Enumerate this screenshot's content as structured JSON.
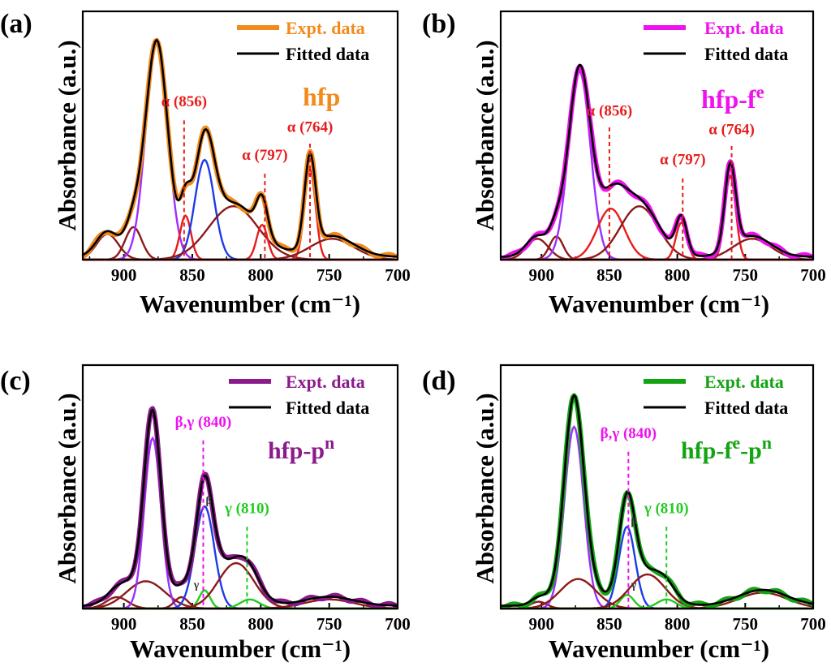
{
  "chart_data": [
    {
      "type": "line",
      "panel_label": "(a)",
      "sample_label": "hfp",
      "sample_sup": "",
      "sample_color": "#f28a1c",
      "xlabel": "Wavenumber (cm⁻¹)",
      "ylabel": "Absorbance (a.u.)",
      "xlim": [
        930,
        700
      ],
      "xticks": [
        "900",
        "850",
        "800",
        "750",
        "700"
      ],
      "legend": [
        {
          "label": "Expt. data",
          "color": "#f28a1c"
        },
        {
          "label": "Fitted data",
          "color": "#000000"
        }
      ],
      "expt_color": "#f28a1c",
      "peaks": [
        {
          "center": 912,
          "height": 0.11,
          "width": 8,
          "color": "#8b1a1a"
        },
        {
          "center": 893,
          "height": 0.14,
          "width": 6,
          "color": "#8b1a1a"
        },
        {
          "center": 876,
          "height": 0.93,
          "width": 8,
          "color": "#9b30ff"
        },
        {
          "center": 855,
          "height": 0.19,
          "width": 4,
          "color": "#e81c1c"
        },
        {
          "center": 841,
          "height": 0.43,
          "width": 7,
          "color": "#1c3ce8"
        },
        {
          "center": 820,
          "height": 0.23,
          "width": 18,
          "color": "#8b1a1a"
        },
        {
          "center": 799,
          "height": 0.15,
          "width": 4,
          "color": "#e81c1c"
        },
        {
          "center": 764,
          "height": 0.39,
          "width": 4,
          "color": "#e81c1c"
        },
        {
          "center": 748,
          "height": 0.09,
          "width": 16,
          "color": "#8b1a1a"
        }
      ],
      "annotations": [
        {
          "text": "α (856)",
          "x": 856,
          "color": "#e81c1c",
          "label_y": 0.66,
          "line_top": 0.6,
          "line_bottom": 0
        },
        {
          "text": "α (797)",
          "x": 797,
          "color": "#e81c1c",
          "label_y": 0.43,
          "line_top": 0.37,
          "line_bottom": 0
        },
        {
          "text": "α (764)",
          "x": 764,
          "color": "#e81c1c",
          "label_y": 0.55,
          "line_top": 0.5,
          "line_bottom": 0
        }
      ],
      "minor_labels": []
    },
    {
      "type": "line",
      "panel_label": "(b)",
      "sample_label": "hfp-f",
      "sample_sup": "e",
      "sample_color": "#ee12ee",
      "xlabel": "Wavenumber (cm⁻¹)",
      "ylabel": "Absorbance (a.u.)",
      "xlim": [
        930,
        700
      ],
      "xticks": [
        "900",
        "850",
        "800",
        "750",
        "700"
      ],
      "legend": [
        {
          "label": "Expt. data",
          "color": "#ee12ee"
        },
        {
          "label": "Fitted data",
          "color": "#000000"
        }
      ],
      "expt_color": "#ee12ee",
      "peaks": [
        {
          "center": 903,
          "height": 0.09,
          "width": 8,
          "color": "#8b1a1a"
        },
        {
          "center": 889,
          "height": 0.1,
          "width": 5,
          "color": "#8b1a1a"
        },
        {
          "center": 872,
          "height": 0.81,
          "width": 8,
          "color": "#9b30ff"
        },
        {
          "center": 849,
          "height": 0.22,
          "width": 10,
          "color": "#e81c1c"
        },
        {
          "center": 828,
          "height": 0.23,
          "width": 14,
          "color": "#8b1a1a"
        },
        {
          "center": 797,
          "height": 0.16,
          "width": 4,
          "color": "#e81c1c"
        },
        {
          "center": 761,
          "height": 0.36,
          "width": 4,
          "color": "#e81c1c"
        },
        {
          "center": 745,
          "height": 0.09,
          "width": 14,
          "color": "#8b1a1a"
        }
      ],
      "annotations": [
        {
          "text": "α (856)",
          "x": 850,
          "color": "#e81c1c",
          "label_y": 0.62,
          "line_top": 0.57,
          "line_bottom": 0
        },
        {
          "text": "α (797)",
          "x": 796,
          "color": "#e81c1c",
          "label_y": 0.41,
          "line_top": 0.35,
          "line_bottom": 0
        },
        {
          "text": "α (764)",
          "x": 760,
          "color": "#e81c1c",
          "label_y": 0.54,
          "line_top": 0.49,
          "line_bottom": 0
        }
      ],
      "minor_labels": []
    },
    {
      "type": "line",
      "panel_label": "(c)",
      "sample_label": "hfp-p",
      "sample_sup": "n",
      "sample_color": "#8b1a8b",
      "xlabel": "Wavenumber (cm⁻¹)",
      "ylabel": "Absorbance (a.u.)",
      "xlim": [
        930,
        700
      ],
      "xticks": [
        "900",
        "850",
        "800",
        "750",
        "700"
      ],
      "legend": [
        {
          "label": "Expt. data",
          "color": "#8b1a8b"
        },
        {
          "label": "Fitted data",
          "color": "#000000"
        }
      ],
      "expt_color": "#8b1a8b",
      "peaks": [
        {
          "center": 905,
          "height": 0.05,
          "width": 8,
          "color": "#8b1a1a"
        },
        {
          "center": 884,
          "height": 0.12,
          "width": 14,
          "color": "#8b1a1a"
        },
        {
          "center": 879,
          "height": 0.75,
          "width": 6,
          "color": "#9b30ff"
        },
        {
          "center": 858,
          "height": 0.05,
          "width": 5,
          "color": "#8b1a1a"
        },
        {
          "center": 841,
          "height": 0.45,
          "width": 7,
          "color": "#1c3ce8"
        },
        {
          "center": 841,
          "height": 0.08,
          "width": 4,
          "color": "#22cc22"
        },
        {
          "center": 818,
          "height": 0.2,
          "width": 13,
          "color": "#8b1a1a"
        },
        {
          "center": 808,
          "height": 0.04,
          "width": 7,
          "color": "#22cc22"
        },
        {
          "center": 750,
          "height": 0.04,
          "width": 18,
          "color": "#8b1a1a"
        }
      ],
      "annotations": [
        {
          "text": "β,γ (840)",
          "x": 842,
          "color": "#ee12ee",
          "label_y": 0.8,
          "line_top": 0.74,
          "line_bottom": 0
        },
        {
          "text": "γ (810)",
          "x": 810,
          "color": "#22cc22",
          "label_y": 0.42,
          "line_top": 0.36,
          "line_bottom": 0
        }
      ],
      "minor_labels": [
        {
          "text": "β",
          "x": 838,
          "y": 0.46
        },
        {
          "text": "γ",
          "x": 847,
          "y": 0.09
        }
      ]
    },
    {
      "type": "line",
      "panel_label": "(d)",
      "sample_label": "hfp-f",
      "sample_sup": "e",
      "sample_label2": "-p",
      "sample_sup2": "n",
      "sample_color": "#13a313",
      "xlabel": "Wavenumber (cm⁻¹)",
      "ylabel": "Absorbance (a.u.)",
      "xlim": [
        930,
        700
      ],
      "xticks": [
        "900",
        "850",
        "800",
        "750",
        "700"
      ],
      "legend": [
        {
          "label": "Expt. data",
          "color": "#13a313"
        },
        {
          "label": "Fitted data",
          "color": "#000000"
        }
      ],
      "expt_color": "#13a313",
      "peaks": [
        {
          "center": 902,
          "height": 0.03,
          "width": 6,
          "color": "#8b1a1a"
        },
        {
          "center": 876,
          "height": 0.8,
          "width": 7,
          "color": "#9b30ff"
        },
        {
          "center": 873,
          "height": 0.13,
          "width": 13,
          "color": "#8b1a1a"
        },
        {
          "center": 837,
          "height": 0.36,
          "width": 6,
          "color": "#1c3ce8"
        },
        {
          "center": 837,
          "height": 0.06,
          "width": 5,
          "color": "#22cc22"
        },
        {
          "center": 822,
          "height": 0.15,
          "width": 13,
          "color": "#8b1a1a"
        },
        {
          "center": 808,
          "height": 0.04,
          "width": 7,
          "color": "#22cc22"
        },
        {
          "center": 737,
          "height": 0.07,
          "width": 18,
          "color": "#8b1a1a"
        }
      ],
      "annotations": [
        {
          "text": "β,γ (840)",
          "x": 836,
          "color": "#ee12ee",
          "label_y": 0.75,
          "line_top": 0.69,
          "line_bottom": 0
        },
        {
          "text": "γ (810)",
          "x": 808,
          "color": "#22cc22",
          "label_y": 0.42,
          "line_top": 0.36,
          "line_bottom": 0
        }
      ],
      "minor_labels": [
        {
          "text": "β",
          "x": 832,
          "y": 0.37
        },
        {
          "text": "γ",
          "x": 832,
          "y": 0.09
        }
      ]
    }
  ]
}
